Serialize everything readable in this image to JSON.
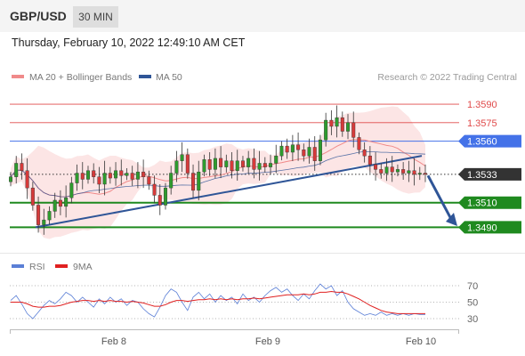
{
  "header": {
    "pair": "GBP/USD",
    "interval": "30 MIN"
  },
  "datetime": "Thursday, February 10, 2022 12:49:10 AM CET",
  "legend": {
    "ma20": "MA 20 + Bollinger Bands",
    "ma50": "MA 50",
    "credit": "Research © 2022 Trading Central",
    "rsi": "RSI",
    "ma9": "9MA"
  },
  "colors": {
    "bollinger": "#f08a8a",
    "ma50": "#2f5597",
    "resistance": "#e04a4a",
    "pivot": "#4472e8",
    "support": "#1f8a1f",
    "current": "#333333",
    "rsi": "#5b7fd6",
    "rsi_ma": "#e02020"
  },
  "chart_data": [
    {
      "type": "candlestick",
      "ylim": [
        1.3478,
        1.3598
      ],
      "x_ticks": [
        "Feb 8",
        "Feb 9",
        "Feb 10"
      ],
      "levels": [
        {
          "label": "1.3590",
          "value": 1.359,
          "role": "resistance"
        },
        {
          "label": "1.3575",
          "value": 1.3575,
          "role": "resistance"
        },
        {
          "label": "1.3560",
          "value": 1.356,
          "role": "pivot"
        },
        {
          "label": "1.3533",
          "value": 1.3533,
          "role": "current"
        },
        {
          "label": "1.3510",
          "value": 1.351,
          "role": "support"
        },
        {
          "label": "1.3490",
          "value": 1.349,
          "role": "support"
        }
      ],
      "trendline": {
        "from": 1.349,
        "to": 1.3548
      },
      "forecast": {
        "from": 1.3532,
        "to": 1.3491
      },
      "price_path": [
        1.3531,
        1.3542,
        1.3536,
        1.3522,
        1.3508,
        1.3492,
        1.3496,
        1.3503,
        1.3512,
        1.3507,
        1.3514,
        1.3526,
        1.3534,
        1.3529,
        1.3536,
        1.3531,
        1.3525,
        1.3534,
        1.353,
        1.3536,
        1.3532,
        1.3534,
        1.3529,
        1.3535,
        1.3531,
        1.3525,
        1.3516,
        1.3508,
        1.3522,
        1.3534,
        1.3544,
        1.3549,
        1.3534,
        1.352,
        1.3535,
        1.3545,
        1.3537,
        1.3546,
        1.3539,
        1.3544,
        1.3536,
        1.3544,
        1.3539,
        1.3546,
        1.3537,
        1.3542,
        1.3539,
        1.3542,
        1.3548,
        1.3556,
        1.3551,
        1.3557,
        1.3553,
        1.3548,
        1.3555,
        1.3544,
        1.3561,
        1.3577,
        1.3572,
        1.3579,
        1.3568,
        1.3575,
        1.3563,
        1.3553,
        1.3548,
        1.3541,
        1.3537,
        1.3534,
        1.3539,
        1.3535,
        1.3537,
        1.3534,
        1.3536,
        1.3533,
        1.3534,
        1.3533
      ]
    },
    {
      "type": "line",
      "ylim": [
        20,
        80
      ],
      "y_ticks": [
        "70",
        "50",
        "30"
      ],
      "series": [
        {
          "name": "RSI",
          "values": [
            52,
            58,
            48,
            36,
            30,
            38,
            46,
            52,
            48,
            54,
            62,
            58,
            50,
            56,
            50,
            44,
            54,
            48,
            56,
            50,
            54,
            46,
            52,
            50,
            42,
            36,
            32,
            44,
            58,
            66,
            62,
            50,
            40,
            56,
            62,
            54,
            60,
            50,
            58,
            52,
            56,
            48,
            60,
            52,
            56,
            50,
            58,
            64,
            68,
            62,
            66,
            58,
            52,
            60,
            54,
            64,
            72,
            66,
            70,
            58,
            64,
            50,
            42,
            38,
            34,
            36,
            34,
            38,
            34,
            36,
            34,
            36,
            34,
            36,
            35,
            35
          ]
        },
        {
          "name": "9MA",
          "values": [
            50,
            50,
            50,
            48,
            45,
            44,
            44,
            45,
            45,
            46,
            48,
            50,
            51,
            52,
            52,
            51,
            52,
            51,
            52,
            51,
            51,
            50,
            51,
            50,
            49,
            47,
            45,
            45,
            47,
            50,
            52,
            52,
            51,
            52,
            53,
            53,
            54,
            53,
            54,
            53,
            54,
            53,
            54,
            54,
            55,
            54,
            55,
            56,
            57,
            58,
            59,
            59,
            59,
            60,
            59,
            60,
            62,
            62,
            63,
            62,
            62,
            60,
            57,
            54,
            50,
            46,
            43,
            40,
            38,
            37,
            36,
            36,
            36,
            36,
            36,
            36
          ]
        }
      ]
    }
  ]
}
